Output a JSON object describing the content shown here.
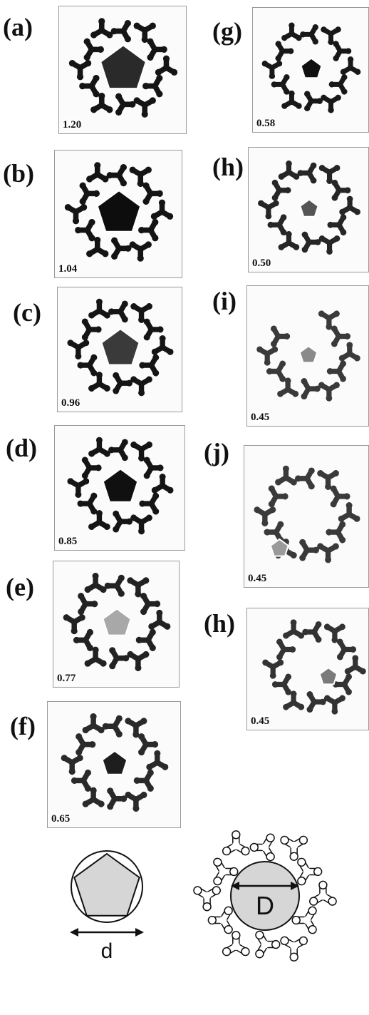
{
  "panels": [
    {
      "label": "(a)",
      "value": "1.20",
      "tone": "#151515",
      "pent": "#2a2a2a",
      "pent_scale": 1.0,
      "variant": "ring"
    },
    {
      "label": "(b)",
      "value": "1.04",
      "tone": "#141414",
      "pent": "#0d0d0d",
      "pent_scale": 0.95,
      "variant": "ring"
    },
    {
      "label": "(c)",
      "value": "0.96",
      "tone": "#151515",
      "pent": "#3a3a3a",
      "pent_scale": 0.85,
      "variant": "ring"
    },
    {
      "label": "(d)",
      "value": "0.85",
      "tone": "#151515",
      "pent": "#101010",
      "pent_scale": 0.78,
      "variant": "ring"
    },
    {
      "label": "(e)",
      "value": "0.77",
      "tone": "#222222",
      "pent": "#a8a8a8",
      "pent_scale": 0.62,
      "variant": "ring"
    },
    {
      "label": "(f)",
      "value": "0.65",
      "tone": "#2a2a2a",
      "pent": "#1e1e1e",
      "pent_scale": 0.55,
      "variant": "ring"
    },
    {
      "label": "(g)",
      "value": "0.58",
      "tone": "#181818",
      "pent": "#101010",
      "pent_scale": 0.5,
      "variant": "ring"
    },
    {
      "label": "(h)",
      "value": "0.50",
      "tone": "#262626",
      "pent": "#555555",
      "pent_scale": 0.42,
      "variant": "ring"
    },
    {
      "label": "(i)",
      "value": "0.45",
      "tone": "#3a3a3a",
      "pent": "#8a8a8a",
      "pent_scale": 0.4,
      "variant": "broken"
    },
    {
      "label": "(j)",
      "value": "0.45",
      "tone": "#3a3a3a",
      "pent": "#9a9a9a",
      "pent_scale": 0.4,
      "variant": "open"
    },
    {
      "label": "(h)",
      "value": "0.45",
      "tone": "#333333",
      "pent": "#7a7a7a",
      "pent_scale": 0.4,
      "variant": "shifted"
    }
  ],
  "schematic": {
    "pentagon_dimension_label": "d",
    "snowflake_dimension_label": "D",
    "colors": {
      "fill": "#d6d6d6",
      "stroke": "#111111"
    }
  }
}
